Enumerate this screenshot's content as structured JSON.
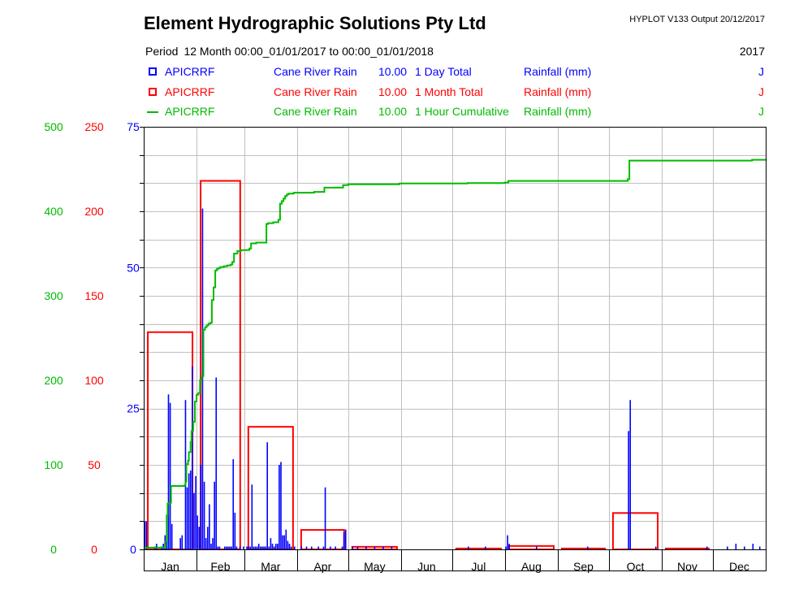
{
  "header": {
    "title": "Element Hydrographic Solutions Pty Ltd",
    "version": "HYPLOT V133  Output 20/12/2017",
    "period_label": "Period",
    "period_value": "12 Month  00:00_01/01/2017 to 00:00_01/01/2018",
    "year": "2017"
  },
  "legend": [
    {
      "symbol": "box",
      "color": "#0000ff",
      "site": "APICRRF",
      "name": "Cane River Rain",
      "factor": "10.00",
      "agg": "1 Day Total",
      "units": "Rainfall (mm)",
      "flag": "J"
    },
    {
      "symbol": "box",
      "color": "#ff0000",
      "site": "APICRRF",
      "name": "Cane River Rain",
      "factor": "10.00",
      "agg": "1 Month Total",
      "units": "Rainfall (mm)",
      "flag": "J"
    },
    {
      "symbol": "line",
      "color": "#00bb00",
      "site": "APICRRF",
      "name": "Cane River Rain",
      "factor": "10.00",
      "agg": "1 Hour Cumulative",
      "units": "Rainfall (mm)",
      "flag": "J"
    }
  ],
  "chart_data": {
    "type": "bar",
    "x_range_days": [
      0,
      365
    ],
    "months": [
      "Jan",
      "Feb",
      "Mar",
      "Apr",
      "May",
      "Jun",
      "Jul",
      "Aug",
      "Sep",
      "Oct",
      "Nov",
      "Dec"
    ],
    "month_days": [
      31,
      28,
      31,
      30,
      31,
      30,
      31,
      31,
      30,
      31,
      30,
      31
    ],
    "axes": [
      {
        "series": "cumulative",
        "color": "#00bb00",
        "range": [
          0,
          500
        ],
        "ticks": [
          0,
          100,
          200,
          300,
          400,
          500
        ]
      },
      {
        "series": "monthly",
        "color": "#ff0000",
        "range": [
          0,
          250
        ],
        "ticks": [
          0,
          50,
          100,
          150,
          200,
          250
        ]
      },
      {
        "series": "daily",
        "color": "#0000ff",
        "range": [
          0,
          75
        ],
        "ticks": [
          0,
          25,
          50,
          75
        ]
      }
    ],
    "grid": true,
    "daily_total": [
      [
        0,
        5
      ],
      [
        1,
        5
      ],
      [
        6,
        0.5
      ],
      [
        7,
        1
      ],
      [
        10,
        0.5
      ],
      [
        11,
        1
      ],
      [
        12,
        2.5
      ],
      [
        13,
        6
      ],
      [
        14,
        27.5
      ],
      [
        15,
        26
      ],
      [
        16,
        4.5
      ],
      [
        21,
        2
      ],
      [
        22,
        2.5
      ],
      [
        24,
        26.5
      ],
      [
        25,
        11
      ],
      [
        26,
        13.5
      ],
      [
        27,
        14
      ],
      [
        28,
        32.5
      ],
      [
        29,
        10
      ],
      [
        30,
        13
      ],
      [
        31,
        6
      ],
      [
        32,
        4
      ],
      [
        33,
        15
      ],
      [
        34,
        60.5
      ],
      [
        35,
        12
      ],
      [
        36,
        2
      ],
      [
        37,
        4
      ],
      [
        38,
        8
      ],
      [
        39,
        1
      ],
      [
        40,
        2
      ],
      [
        41,
        12
      ],
      [
        42,
        30.5
      ],
      [
        43,
        0.5
      ],
      [
        44,
        0.5
      ],
      [
        47,
        0.5
      ],
      [
        48,
        0.5
      ],
      [
        49,
        0.5
      ],
      [
        50,
        0.5
      ],
      [
        51,
        0.5
      ],
      [
        52,
        16
      ],
      [
        53,
        6.5
      ],
      [
        54,
        0.5
      ],
      [
        56,
        0.5
      ],
      [
        58,
        0.5
      ],
      [
        60,
        0.5
      ],
      [
        61,
        0.5
      ],
      [
        62,
        0.5
      ],
      [
        63,
        11.5
      ],
      [
        64,
        0.5
      ],
      [
        65,
        0.5
      ],
      [
        66,
        0.5
      ],
      [
        67,
        1
      ],
      [
        68,
        0.5
      ],
      [
        69,
        0.5
      ],
      [
        70,
        0.5
      ],
      [
        71,
        0.5
      ],
      [
        72,
        19
      ],
      [
        73,
        0.5
      ],
      [
        74,
        2
      ],
      [
        75,
        1
      ],
      [
        76,
        0.5
      ],
      [
        77,
        1
      ],
      [
        78,
        1
      ],
      [
        79,
        15
      ],
      [
        80,
        15.5
      ],
      [
        81,
        2.5
      ],
      [
        82,
        2.5
      ],
      [
        83,
        3.5
      ],
      [
        84,
        1.5
      ],
      [
        85,
        1
      ],
      [
        86,
        0.5
      ],
      [
        88,
        0.5
      ],
      [
        92,
        0.5
      ],
      [
        95,
        0.5
      ],
      [
        98,
        0.5
      ],
      [
        102,
        0.5
      ],
      [
        105,
        0.5
      ],
      [
        106,
        11
      ],
      [
        109,
        0.5
      ],
      [
        112,
        0.5
      ],
      [
        116,
        0.5
      ],
      [
        117,
        3
      ],
      [
        118,
        3.5
      ],
      [
        122,
        0.5
      ],
      [
        125,
        0.5
      ],
      [
        130,
        0.5
      ],
      [
        135,
        0.5
      ],
      [
        140,
        0.5
      ],
      [
        145,
        0.5
      ],
      [
        190,
        0.5
      ],
      [
        200,
        0.5
      ],
      [
        212,
        0.5
      ],
      [
        213,
        2.5
      ],
      [
        214,
        1
      ],
      [
        230,
        0.5
      ],
      [
        260,
        0.5
      ],
      [
        284,
        21
      ],
      [
        285,
        26.5
      ],
      [
        300,
        0.5
      ],
      [
        330,
        0.5
      ],
      [
        342,
        0.5
      ],
      [
        347,
        1
      ],
      [
        352,
        0.5
      ],
      [
        357,
        1
      ],
      [
        361,
        0.5
      ]
    ],
    "monthly_total": [
      128.5,
      218,
      72.5,
      11.5,
      1.5,
      0,
      0.5,
      2,
      0.5,
      21.5,
      0.5,
      0
    ],
    "cumulative": [
      [
        0,
        2
      ],
      [
        12,
        2
      ],
      [
        12.5,
        4
      ],
      [
        13,
        10
      ],
      [
        13.5,
        40
      ],
      [
        14,
        54
      ],
      [
        15,
        55
      ],
      [
        16,
        75
      ],
      [
        20,
        75
      ],
      [
        24,
        76
      ],
      [
        24.5,
        80
      ],
      [
        25,
        101
      ],
      [
        26,
        105
      ],
      [
        26.5,
        115
      ],
      [
        27,
        115
      ],
      [
        27.5,
        127
      ],
      [
        28,
        140
      ],
      [
        29,
        151
      ],
      [
        30,
        175
      ],
      [
        31,
        183
      ],
      [
        32,
        185
      ],
      [
        33,
        200
      ],
      [
        34,
        205
      ],
      [
        35,
        260
      ],
      [
        36,
        263
      ],
      [
        37,
        265
      ],
      [
        38,
        267
      ],
      [
        39,
        268
      ],
      [
        40,
        295
      ],
      [
        41,
        310
      ],
      [
        42,
        330
      ],
      [
        43,
        332
      ],
      [
        44,
        333
      ],
      [
        45,
        334
      ],
      [
        46,
        334
      ],
      [
        47,
        335
      ],
      [
        48,
        335
      ],
      [
        49,
        336
      ],
      [
        50,
        336
      ],
      [
        51,
        337
      ],
      [
        52,
        340
      ],
      [
        53,
        350
      ],
      [
        55,
        353
      ],
      [
        57,
        354
      ],
      [
        60,
        354
      ],
      [
        62,
        356
      ],
      [
        63,
        362
      ],
      [
        64,
        362
      ],
      [
        66,
        363
      ],
      [
        68,
        363
      ],
      [
        70,
        363
      ],
      [
        72,
        385
      ],
      [
        73,
        386
      ],
      [
        76,
        387
      ],
      [
        79,
        390
      ],
      [
        80,
        409
      ],
      [
        81,
        412
      ],
      [
        82,
        415
      ],
      [
        83,
        418
      ],
      [
        84,
        420
      ],
      [
        85,
        421
      ],
      [
        88,
        422
      ],
      [
        95,
        422
      ],
      [
        100,
        423
      ],
      [
        105,
        423
      ],
      [
        106,
        428
      ],
      [
        110,
        428
      ],
      [
        117,
        431
      ],
      [
        120,
        432
      ],
      [
        150,
        433
      ],
      [
        170,
        433
      ],
      [
        190,
        433.5
      ],
      [
        212,
        434
      ],
      [
        214,
        436
      ],
      [
        230,
        436
      ],
      [
        260,
        436
      ],
      [
        284,
        438
      ],
      [
        285,
        460
      ],
      [
        300,
        460
      ],
      [
        330,
        460
      ],
      [
        345,
        460
      ],
      [
        357,
        461
      ],
      [
        365,
        461
      ]
    ]
  }
}
